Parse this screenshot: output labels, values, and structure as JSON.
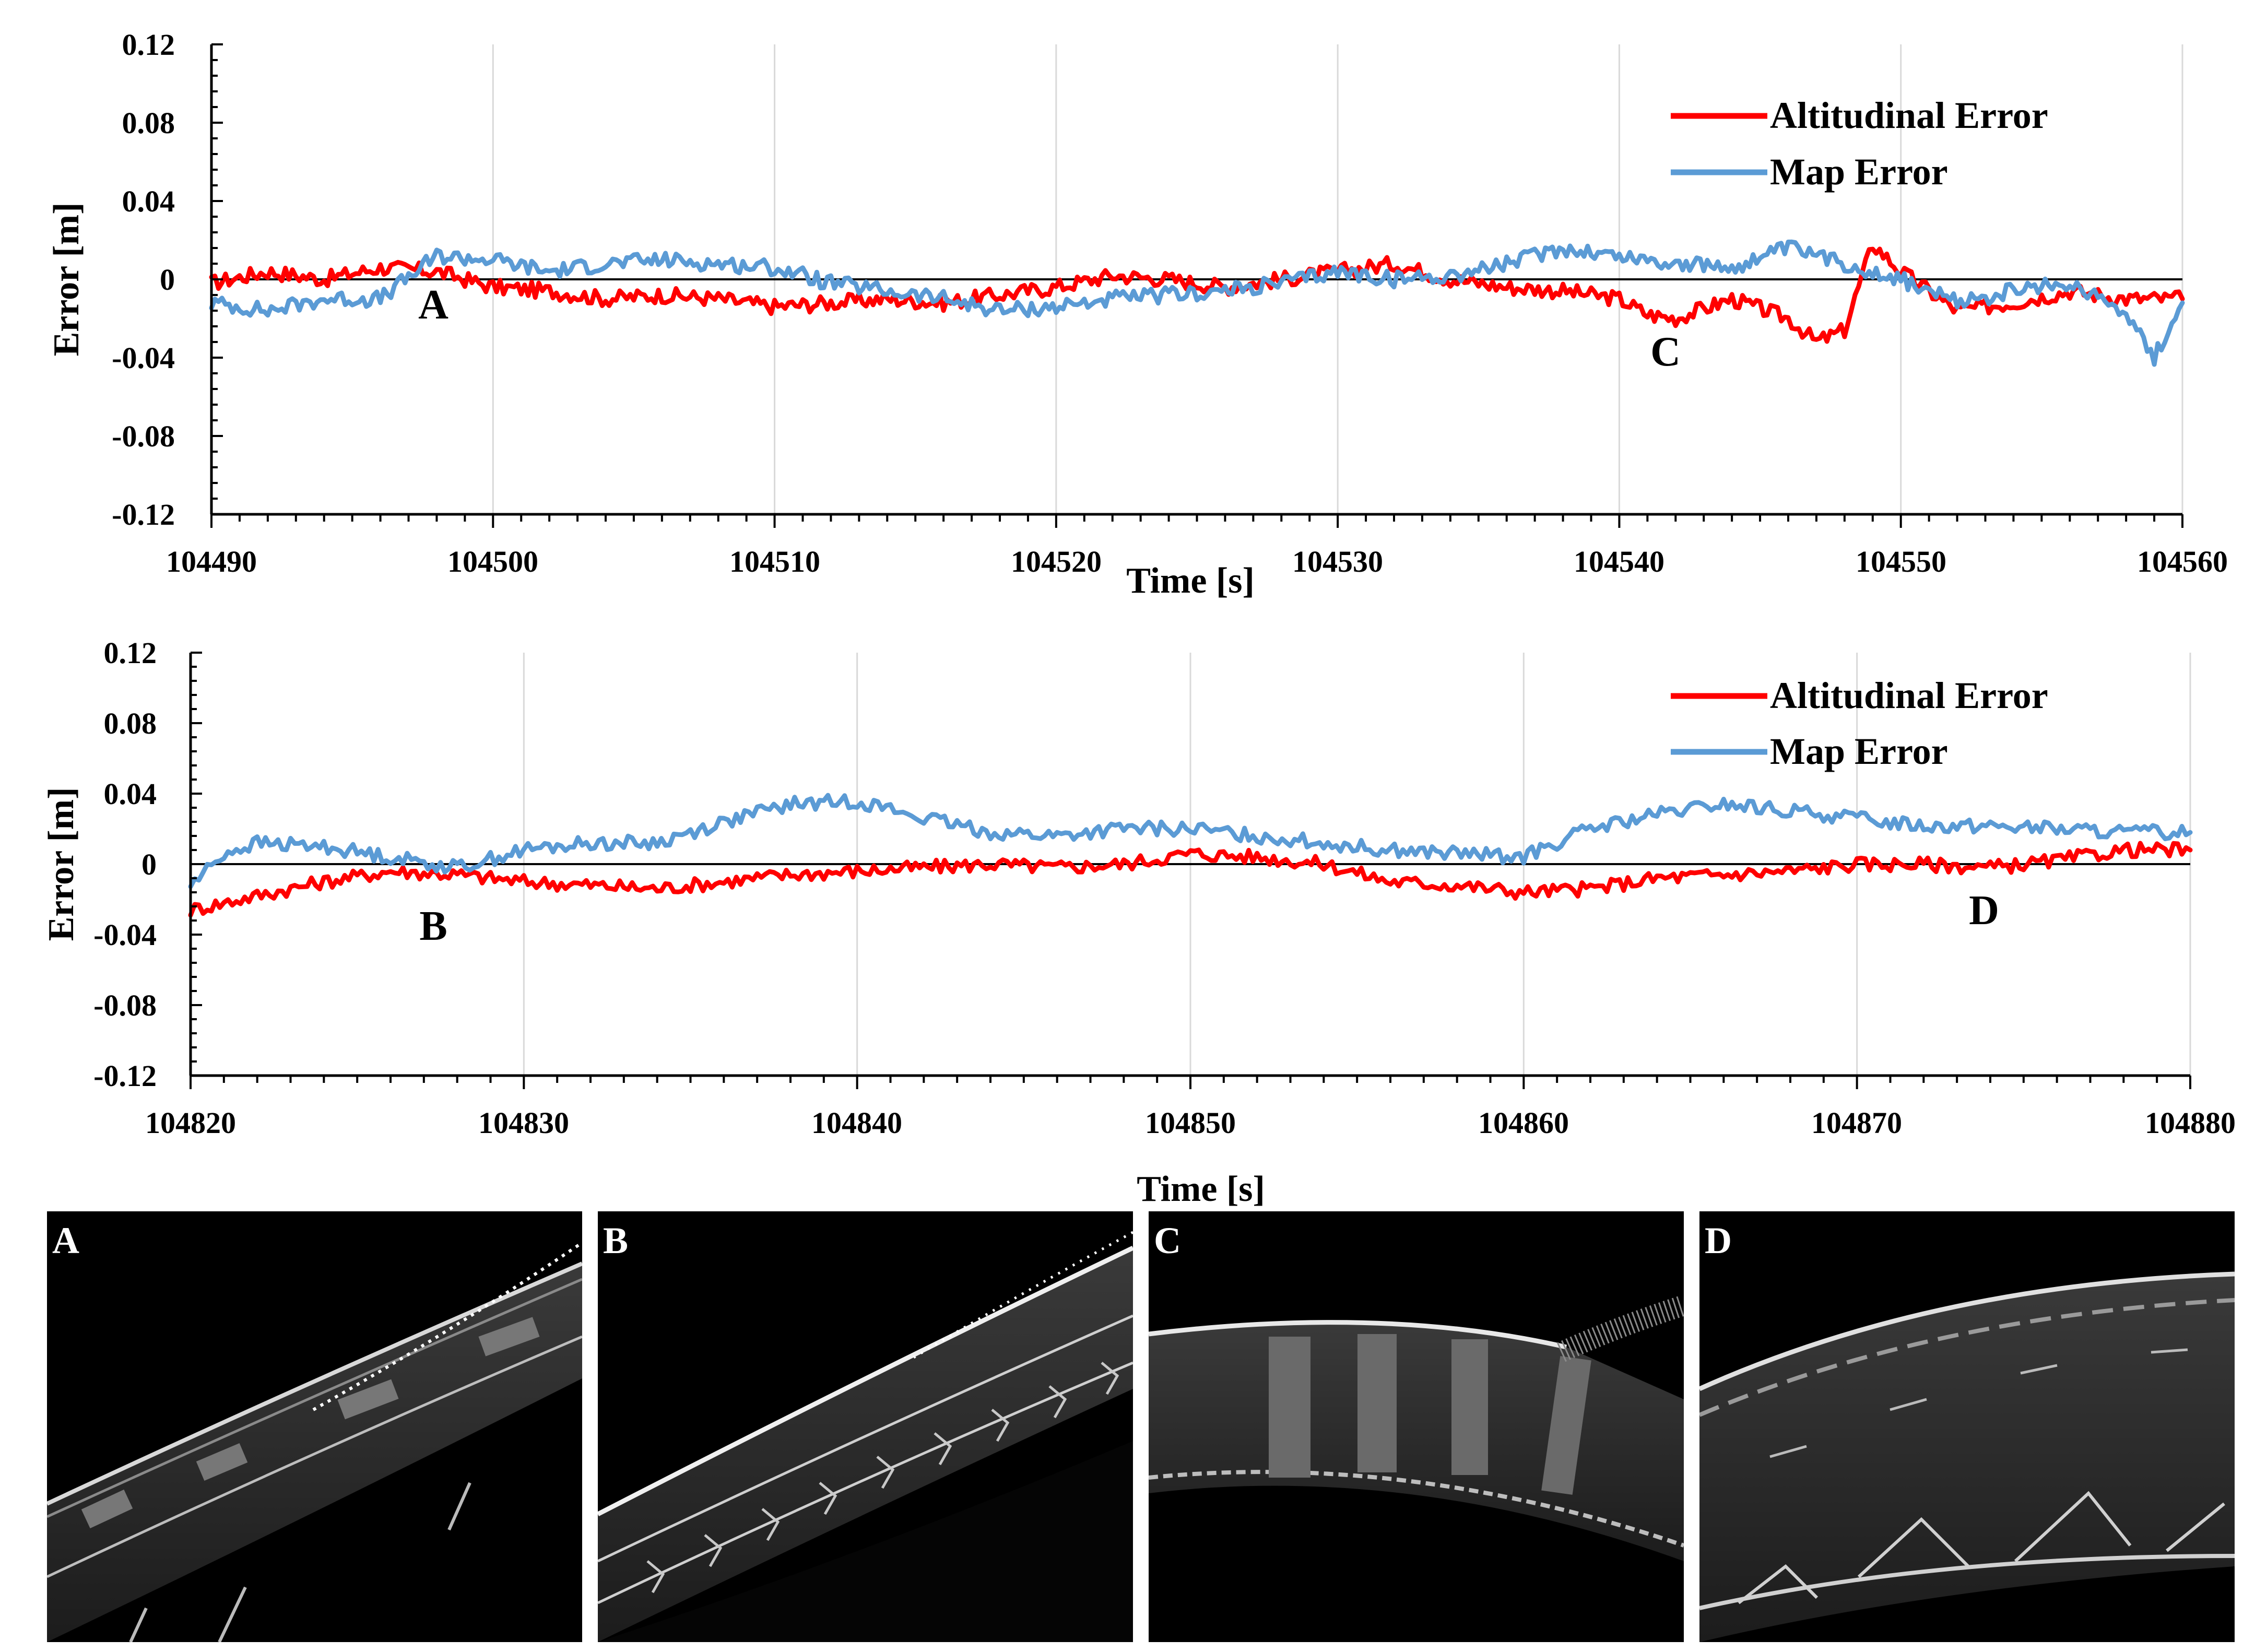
{
  "chart_data": [
    {
      "type": "line",
      "title": "",
      "xlabel": "Time [s]",
      "ylabel": "Error  [m]",
      "xlim": [
        104490,
        104560
      ],
      "ylim": [
        -0.12,
        0.12
      ],
      "x_ticks": [
        "104490",
        "104500",
        "104510",
        "104520",
        "104530",
        "104540",
        "104550",
        "104560"
      ],
      "y_ticks": [
        "0.12",
        "0.08",
        "0.04",
        "0",
        "-0.04",
        "-0.08",
        "-0.12"
      ],
      "legend": [
        "Altitudinal  Error",
        "Map Error"
      ],
      "legend_position": "top-right",
      "grid": "vertical",
      "annotations": [
        {
          "label": "A",
          "x": 104498.0,
          "y": -0.015
        },
        {
          "label": "C",
          "x": 104540.5,
          "y": -0.038
        }
      ],
      "series": [
        {
          "name": "Altitudinal  Error",
          "color": "#ff0000",
          "x": [
            104490,
            104492,
            104494,
            104496,
            104498,
            104500,
            104502,
            104504,
            104506,
            104508,
            104510,
            104512,
            104514,
            104516,
            104518,
            104520,
            104522,
            104524,
            104526,
            104528,
            104530,
            104532,
            104534,
            104536,
            104538,
            104540,
            104541,
            104542,
            104544,
            104546,
            104547,
            104548,
            104549,
            104550,
            104552,
            104554,
            104556,
            104558,
            104560
          ],
          "values": [
            -0.002,
            0.004,
            0.0,
            0.006,
            0.004,
            -0.004,
            -0.006,
            -0.01,
            -0.008,
            -0.01,
            -0.014,
            -0.012,
            -0.01,
            -0.012,
            -0.008,
            -0.004,
            0.002,
            0.0,
            -0.004,
            0.0,
            0.004,
            0.008,
            0.0,
            -0.004,
            -0.006,
            -0.01,
            -0.018,
            -0.02,
            -0.01,
            -0.02,
            -0.032,
            -0.026,
            0.018,
            0.004,
            -0.016,
            -0.012,
            -0.006,
            -0.01,
            -0.01
          ]
        },
        {
          "name": "Map Error",
          "color": "#5b9bd5",
          "x": [
            104490,
            104492,
            104494,
            104496,
            104498,
            104500,
            104502,
            104504,
            104506,
            104508,
            104510,
            104512,
            104514,
            104516,
            104518,
            104520,
            104522,
            104524,
            104526,
            104528,
            104530,
            104532,
            104534,
            104536,
            104538,
            104540,
            104542,
            104544,
            104546,
            104548,
            104550,
            104552,
            104554,
            104556,
            104558,
            104559,
            104560
          ],
          "values": [
            -0.012,
            -0.016,
            -0.01,
            -0.01,
            0.012,
            0.01,
            0.004,
            0.008,
            0.01,
            0.008,
            0.006,
            -0.002,
            -0.006,
            -0.01,
            -0.016,
            -0.014,
            -0.01,
            -0.008,
            -0.006,
            -0.002,
            0.004,
            0.0,
            0.002,
            0.008,
            0.016,
            0.012,
            0.008,
            0.006,
            0.016,
            0.008,
            0.0,
            -0.012,
            -0.006,
            -0.002,
            -0.016,
            -0.04,
            -0.012
          ]
        }
      ]
    },
    {
      "type": "line",
      "title": "",
      "xlabel": "Time [s]",
      "ylabel": "Error  [m]",
      "xlim": [
        104820,
        104880
      ],
      "ylim": [
        -0.12,
        0.12
      ],
      "x_ticks": [
        "104820",
        "104830",
        "104840",
        "104850",
        "104860",
        "104870",
        "104880"
      ],
      "y_ticks": [
        "0.12",
        "0.08",
        "0.04",
        "0",
        "-0.04",
        "-0.08",
        "-0.12"
      ],
      "legend": [
        "Altitudinal  Error",
        "Map Error"
      ],
      "legend_position": "top-right",
      "grid": "vertical",
      "annotations": [
        {
          "label": "B",
          "x": 104827.3,
          "y": -0.034
        },
        {
          "label": "D",
          "x": 104874.3,
          "y": -0.026
        }
      ],
      "series": [
        {
          "name": "Altitudinal  Error",
          "color": "#ff0000",
          "x": [
            104820,
            104822,
            104824,
            104826,
            104828,
            104830,
            104832,
            104834,
            104836,
            104838,
            104840,
            104842,
            104844,
            104846,
            104848,
            104850,
            104852,
            104854,
            104856,
            104858,
            104860,
            104862,
            104864,
            104866,
            104868,
            104870,
            104872,
            104874,
            104876,
            104878,
            104880
          ],
          "values": [
            -0.026,
            -0.018,
            -0.01,
            -0.004,
            -0.006,
            -0.01,
            -0.012,
            -0.014,
            -0.01,
            -0.006,
            -0.004,
            -0.002,
            0.0,
            -0.002,
            0.0,
            0.006,
            0.004,
            0.0,
            -0.01,
            -0.012,
            -0.016,
            -0.014,
            -0.008,
            -0.006,
            -0.004,
            0.0,
            0.0,
            -0.002,
            0.002,
            0.008,
            0.008
          ]
        },
        {
          "name": "Map Error",
          "color": "#5b9bd5",
          "x": [
            104820,
            104821,
            104822,
            104824,
            104826,
            104828,
            104830,
            104832,
            104834,
            104836,
            104838,
            104840,
            104842,
            104844,
            104846,
            104848,
            104850,
            104852,
            104854,
            104856,
            104858,
            104860,
            104862,
            104864,
            104866,
            104868,
            104870,
            104872,
            104874,
            104876,
            104878,
            104880
          ],
          "values": [
            -0.012,
            0.006,
            0.012,
            0.01,
            0.004,
            -0.002,
            0.008,
            0.012,
            0.012,
            0.024,
            0.034,
            0.036,
            0.026,
            0.018,
            0.016,
            0.02,
            0.02,
            0.016,
            0.012,
            0.008,
            0.006,
            0.004,
            0.02,
            0.028,
            0.034,
            0.03,
            0.026,
            0.022,
            0.022,
            0.02,
            0.018,
            0.018
          ]
        }
      ]
    }
  ],
  "panels": [
    {
      "label": "A"
    },
    {
      "label": "B"
    },
    {
      "label": "C"
    },
    {
      "label": "D"
    }
  ]
}
